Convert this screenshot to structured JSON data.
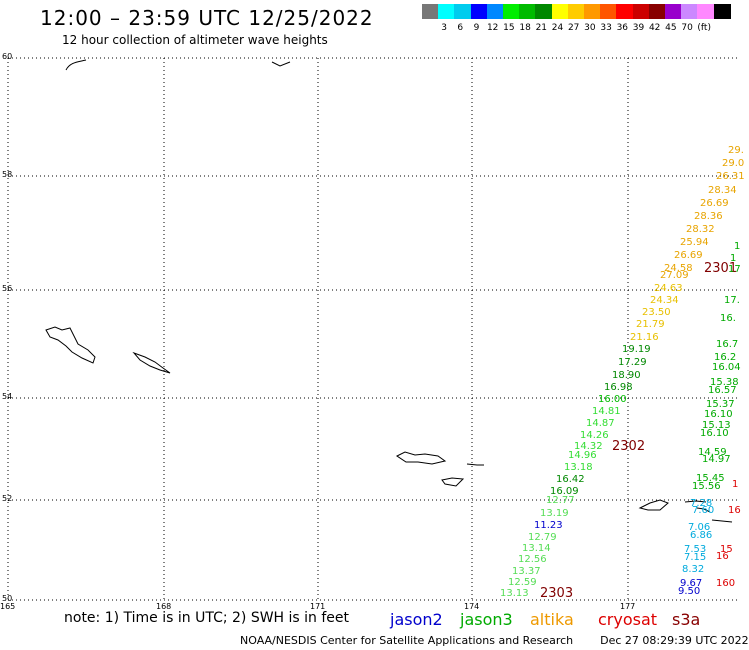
{
  "header": {
    "title": "12:00 – 23:59 UTC 12/25/2022",
    "subtitle": "12 hour collection of altimeter wave heights"
  },
  "color_scale": {
    "colors": [
      "#777777",
      "#00ffff",
      "#00ccee",
      "#0000ff",
      "#0088ff",
      "#00ee00",
      "#00bb00",
      "#008800",
      "#ffff00",
      "#ffcc00",
      "#ff9900",
      "#ff5500",
      "#ff0000",
      "#cc0000",
      "#880000",
      "#9900cc",
      "#cc88ff",
      "#ff88ff",
      "#000000"
    ],
    "labels": [
      "3",
      "6",
      "9",
      "12",
      "15",
      "18",
      "21",
      "24",
      "27",
      "30",
      "33",
      "36",
      "39",
      "42",
      "45",
      "70"
    ],
    "unit": "(ft)"
  },
  "map": {
    "lat_labels": [
      "60",
      "58",
      "56",
      "54",
      "52",
      "50"
    ],
    "lon_labels": [
      "165",
      "168",
      "171",
      "174",
      "177"
    ],
    "track_labels": [
      "2301",
      "2302",
      "2303"
    ],
    "points": [
      {
        "v": "29.",
        "c": "#e8a400"
      },
      {
        "v": "29.0",
        "c": "#e8a400"
      },
      {
        "v": "26.31",
        "c": "#e8a400"
      },
      {
        "v": "28.34",
        "c": "#e8a400"
      },
      {
        "v": "26.69",
        "c": "#e8a400"
      },
      {
        "v": "28.36",
        "c": "#e8a400"
      },
      {
        "v": "28.32",
        "c": "#e8a400"
      },
      {
        "v": "25.94",
        "c": "#e8a400"
      },
      {
        "v": "26.69",
        "c": "#e8a400"
      },
      {
        "v": "24.58",
        "c": "#e8a400"
      },
      {
        "v": "27.09",
        "c": "#e8a400"
      },
      {
        "v": "24.63",
        "c": "#e8c000"
      },
      {
        "v": "24.34",
        "c": "#e8c000"
      },
      {
        "v": "23.50",
        "c": "#e8c000"
      },
      {
        "v": "21.79",
        "c": "#e8c000"
      },
      {
        "v": "21.16",
        "c": "#e8c000"
      },
      {
        "v": "19.19",
        "c": "#008800"
      },
      {
        "v": "17.29",
        "c": "#008800"
      },
      {
        "v": "18.90",
        "c": "#008800"
      },
      {
        "v": "16.98",
        "c": "#008800"
      },
      {
        "v": "16.00",
        "c": "#00bb00"
      },
      {
        "v": "14.81",
        "c": "#33dd33"
      },
      {
        "v": "14.87",
        "c": "#33dd33"
      },
      {
        "v": "14.26",
        "c": "#33dd33"
      },
      {
        "v": "14.32",
        "c": "#33dd33"
      },
      {
        "v": "14.96",
        "c": "#33dd33"
      },
      {
        "v": "13.18",
        "c": "#33dd33"
      },
      {
        "v": "16.42",
        "c": "#008800"
      },
      {
        "v": "16.09",
        "c": "#008800"
      },
      {
        "v": "12.77",
        "c": "#55dd55"
      },
      {
        "v": "13.19",
        "c": "#55dd55"
      },
      {
        "v": "11.23",
        "c": "#0000cc"
      },
      {
        "v": "12.79",
        "c": "#55dd55"
      },
      {
        "v": "13.14",
        "c": "#55dd55"
      },
      {
        "v": "12.56",
        "c": "#55dd55"
      },
      {
        "v": "13.37",
        "c": "#55dd55"
      },
      {
        "v": "12.59",
        "c": "#55dd55"
      },
      {
        "v": "13.13",
        "c": "#55dd55"
      },
      {
        "v": "1",
        "c": "#00aa00"
      },
      {
        "v": "1",
        "c": "#00aa00"
      },
      {
        "v": "17",
        "c": "#00aa00"
      },
      {
        "v": "17.",
        "c": "#00aa00"
      },
      {
        "v": "16.",
        "c": "#00aa00"
      },
      {
        "v": "16.7",
        "c": "#00aa00"
      },
      {
        "v": "16.2",
        "c": "#00aa00"
      },
      {
        "v": "16.04",
        "c": "#00aa00"
      },
      {
        "v": "15.38",
        "c": "#00aa00"
      },
      {
        "v": "16.57",
        "c": "#00aa00"
      },
      {
        "v": "15.37",
        "c": "#00aa00"
      },
      {
        "v": "16.10",
        "c": "#00aa00"
      },
      {
        "v": "15.13",
        "c": "#00aa00"
      },
      {
        "v": "16.10",
        "c": "#00aa00"
      },
      {
        "v": "14.59",
        "c": "#00aa00"
      },
      {
        "v": "14.97",
        "c": "#00aa00"
      },
      {
        "v": "15.45",
        "c": "#00aa00"
      },
      {
        "v": "15.56",
        "c": "#00aa00"
      },
      {
        "v": "7.28",
        "c": "#00aadd"
      },
      {
        "v": "7.60",
        "c": "#00aadd"
      },
      {
        "v": "7.06",
        "c": "#00aadd"
      },
      {
        "v": "6.86",
        "c": "#00aadd"
      },
      {
        "v": "7.53",
        "c": "#00aadd"
      },
      {
        "v": "7.15",
        "c": "#00aadd"
      },
      {
        "v": "8.32",
        "c": "#00aadd"
      },
      {
        "v": "9.67",
        "c": "#0000cc"
      },
      {
        "v": "9.50",
        "c": "#0000cc"
      },
      {
        "v": "1",
        "c": "#dd0000"
      },
      {
        "v": "16",
        "c": "#dd0000"
      },
      {
        "v": "15",
        "c": "#dd0000"
      },
      {
        "v": "16",
        "c": "#dd0000"
      },
      {
        "v": "160",
        "c": "#dd0000"
      }
    ]
  },
  "footer": {
    "note": "note: 1) Time is in UTC; 2) SWH is in feet",
    "legend": [
      {
        "name": "jason2",
        "color": "#0000cc"
      },
      {
        "name": "jason3",
        "color": "#00aa00"
      },
      {
        "name": "altika",
        "color": "#ee9900"
      },
      {
        "name": "cryosat",
        "color": "#dd0000"
      },
      {
        "name": "s3a",
        "color": "#880000"
      }
    ],
    "credit": "NOAA/NESDIS Center for Satellite Applications and Research",
    "timestamp": "Dec 27 08:29:39 UTC 2022"
  }
}
